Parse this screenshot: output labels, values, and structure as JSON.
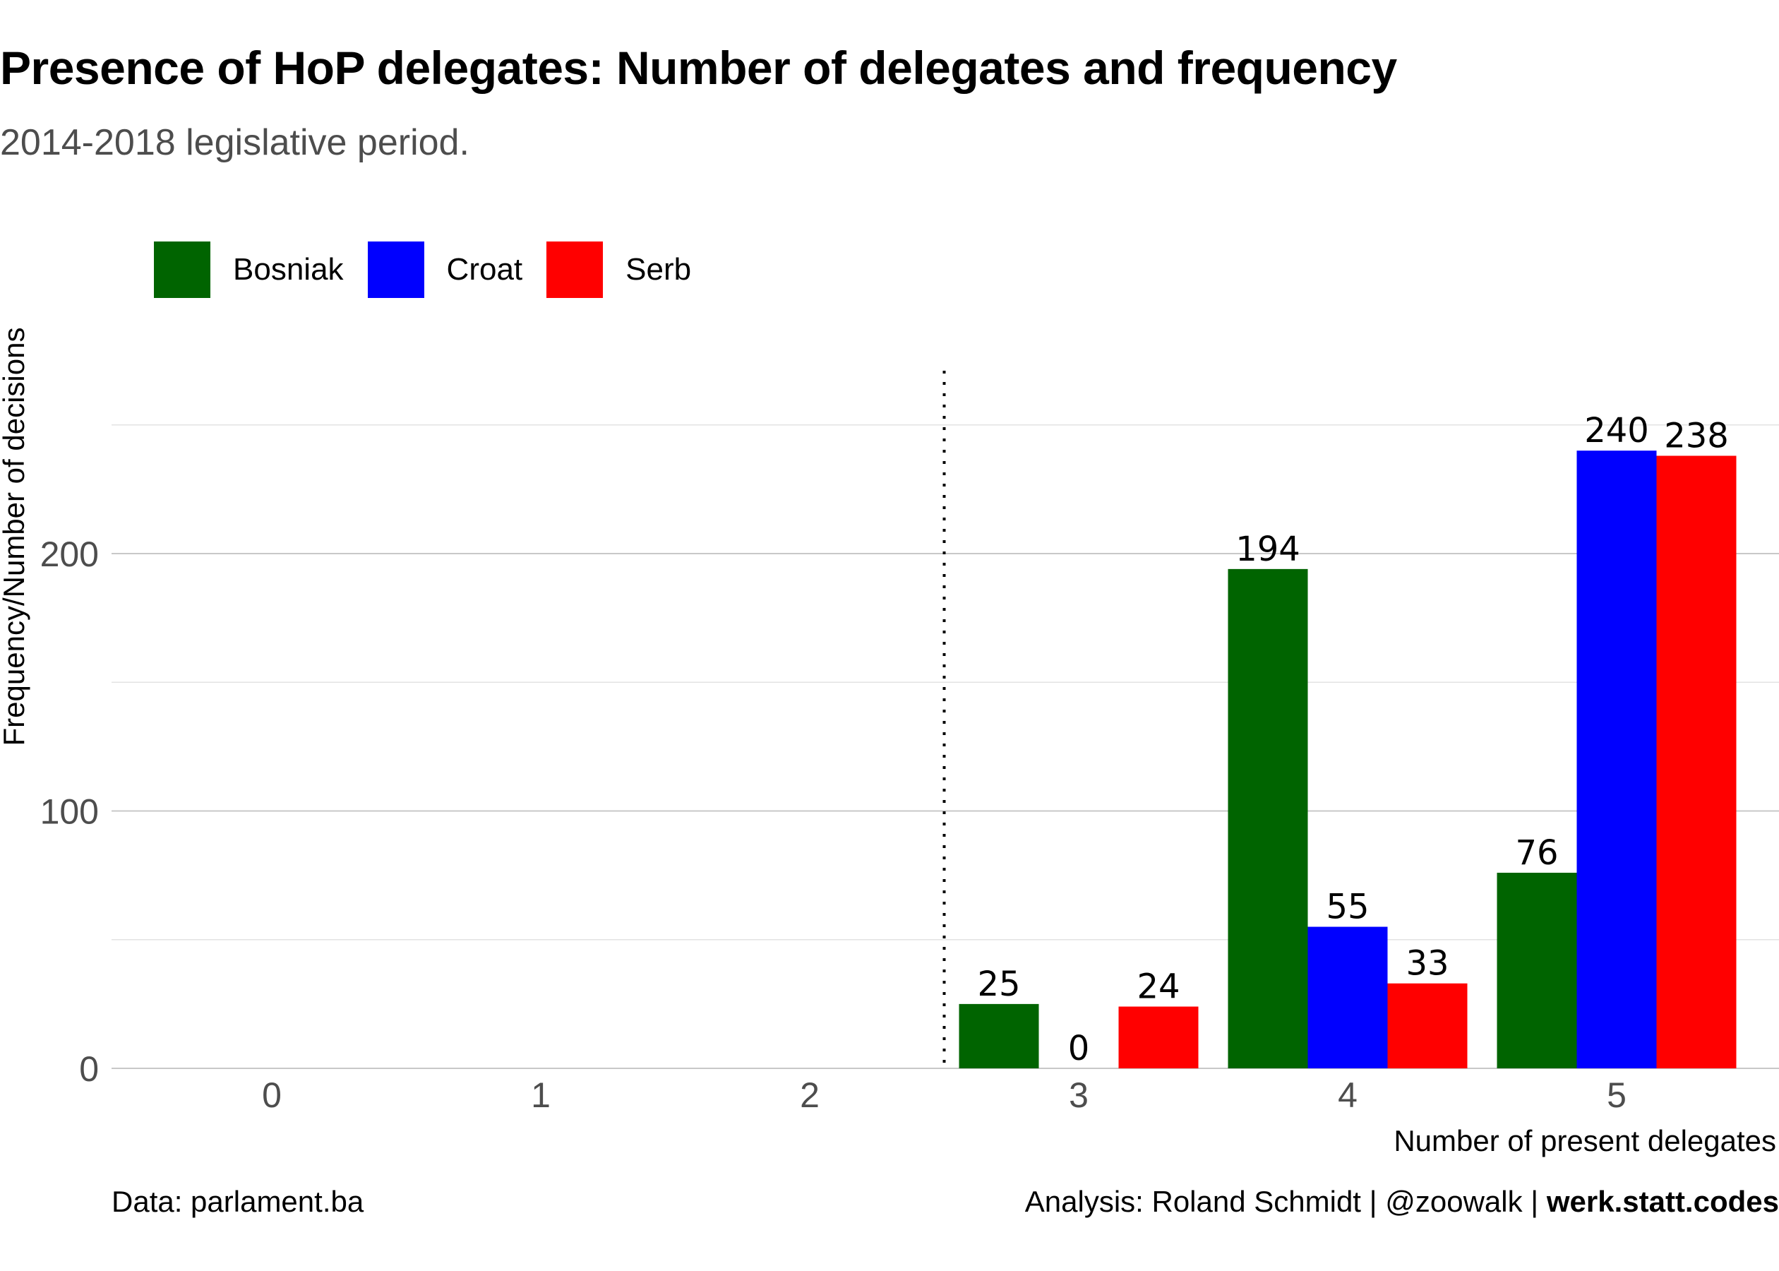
{
  "header": {
    "title": "Presence of HoP delegates: Number of delegates and frequency",
    "subtitle": "2014-2018 legislative period."
  },
  "captions": {
    "data_source": "Data: parlament.ba",
    "analysis_prefix": "Analysis: Roland Schmidt | @zoowalk | ",
    "analysis_site": "werk.statt.codes"
  },
  "chart_data": {
    "type": "bar",
    "categories": [
      "0",
      "1",
      "2",
      "3",
      "4",
      "5"
    ],
    "series": [
      {
        "name": "Bosniak",
        "color": "#006400",
        "values": [
          null,
          null,
          null,
          25,
          194,
          76
        ]
      },
      {
        "name": "Croat",
        "color": "#0000FF",
        "values": [
          null,
          null,
          null,
          0,
          55,
          240
        ]
      },
      {
        "name": "Serb",
        "color": "#FF0000",
        "values": [
          null,
          null,
          null,
          24,
          33,
          238
        ]
      }
    ],
    "xlabel": "Number of present delegates",
    "ylabel": "Frequency/Number of decisions",
    "ylim": [
      0,
      260
    ],
    "yticks": [
      0,
      100,
      200
    ],
    "grid": true,
    "legend_position": "top-left",
    "reference_line": {
      "type": "vertical-dotted",
      "x": 2.5
    }
  }
}
